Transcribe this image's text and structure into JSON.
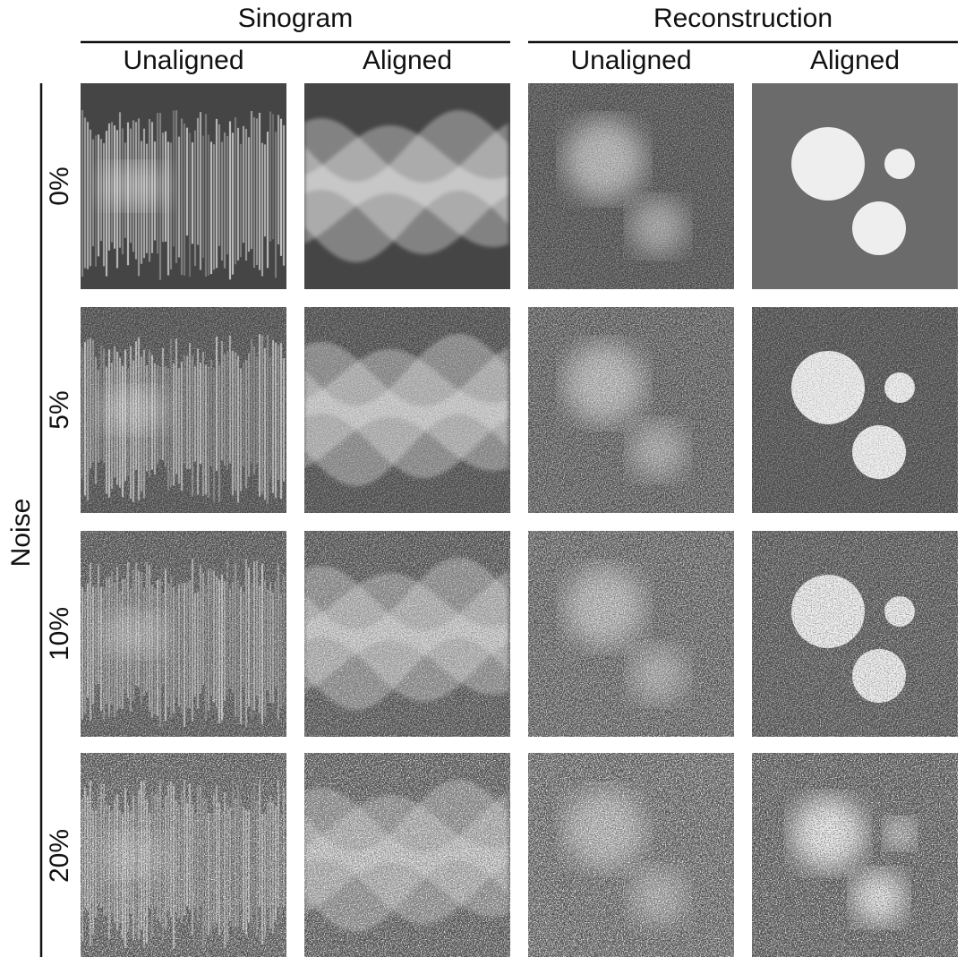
{
  "header": {
    "groups": [
      {
        "title": "Sinogram",
        "columns": [
          "Unaligned",
          "Aligned"
        ]
      },
      {
        "title": "Reconstruction",
        "columns": [
          "Unaligned",
          "Aligned"
        ]
      }
    ]
  },
  "rows": {
    "title": "Noise",
    "labels": [
      "0%",
      "5%",
      "10%",
      "20%"
    ]
  }
}
